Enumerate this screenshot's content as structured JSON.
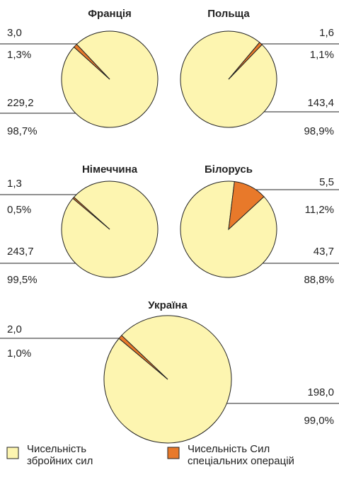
{
  "chart_data": [
    {
      "type": "pie",
      "title": "Франція",
      "categories": [
        "Чисельність збройних сил",
        "Чисельність Сил спеціальних операцій"
      ],
      "colors": [
        "#fdf5b0",
        "#e8792a"
      ],
      "values": [
        229.2,
        3.0
      ],
      "value_labels": [
        "229,2",
        "3,0"
      ],
      "percentages": [
        98.7,
        1.3
      ],
      "percentage_labels": [
        "98,7%",
        "1,3%"
      ]
    },
    {
      "type": "pie",
      "title": "Польща",
      "categories": [
        "Чисельність збройних сил",
        "Чисельність Сил спеціальних операцій"
      ],
      "colors": [
        "#fdf5b0",
        "#e8792a"
      ],
      "values": [
        143.4,
        1.6
      ],
      "value_labels": [
        "143,4",
        "1,6"
      ],
      "percentages": [
        98.9,
        1.1
      ],
      "percentage_labels": [
        "98,9%",
        "1,1%"
      ]
    },
    {
      "type": "pie",
      "title": "Німеччина",
      "categories": [
        "Чисельність збройних сил",
        "Чисельність Сил спеціальних операцій"
      ],
      "colors": [
        "#fdf5b0",
        "#e8792a"
      ],
      "values": [
        243.7,
        1.3
      ],
      "value_labels": [
        "243,7",
        "1,3"
      ],
      "percentages": [
        99.5,
        0.5
      ],
      "percentage_labels": [
        "99,5%",
        "0,5%"
      ]
    },
    {
      "type": "pie",
      "title": "Білорусь",
      "categories": [
        "Чисельність збройних сил",
        "Чисельність Сил спеціальних операцій"
      ],
      "colors": [
        "#fdf5b0",
        "#e8792a"
      ],
      "values": [
        43.7,
        5.5
      ],
      "value_labels": [
        "43,7",
        "5,5"
      ],
      "percentages": [
        88.8,
        11.2
      ],
      "percentage_labels": [
        "88,8%",
        "11,2%"
      ]
    },
    {
      "type": "pie",
      "title": "Україна",
      "categories": [
        "Чисельність збройних сил",
        "Чисельність Сил спеціальних операцій"
      ],
      "colors": [
        "#fdf5b0",
        "#e8792a"
      ],
      "values": [
        198.0,
        2.0
      ],
      "value_labels": [
        "198,0",
        "2,0"
      ],
      "percentages": [
        99.0,
        1.0
      ],
      "percentage_labels": [
        "99,0%",
        "1,0%"
      ]
    }
  ]
}
